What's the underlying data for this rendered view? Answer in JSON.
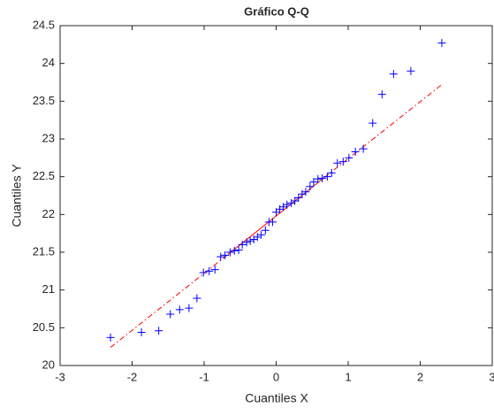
{
  "chart_data": {
    "type": "qq",
    "title": "Gráfico Q-Q",
    "x_label": "Cuantiles X",
    "y_label": "Cuantiles Y",
    "xlim": [
      -3,
      3
    ],
    "ylim": [
      20,
      24.5
    ],
    "xticks": [
      -3,
      -2,
      -1,
      0,
      1,
      2,
      3
    ],
    "yticks": [
      20,
      20.5,
      21,
      21.5,
      22,
      22.5,
      23,
      23.5,
      24,
      24.5
    ],
    "grid": false,
    "series": [
      {
        "color": "#0000ff",
        "x": [
          -2.3,
          -1.87,
          -1.63,
          -1.47,
          -1.34,
          -1.21,
          -1.1,
          -1.01,
          -0.93,
          -0.85,
          -0.77,
          -0.71,
          -0.64,
          -0.58,
          -0.52,
          -0.47,
          -0.41,
          -0.36,
          -0.31,
          -0.26,
          -0.21,
          -0.15,
          -0.1,
          -0.05,
          0,
          0.05,
          0.1,
          0.15,
          0.21,
          0.26,
          0.31,
          0.36,
          0.41,
          0.47,
          0.52,
          0.58,
          0.64,
          0.71,
          0.77,
          0.85,
          0.93,
          1.01,
          1.1,
          1.21,
          1.34,
          1.47,
          1.63,
          1.87,
          2.3
        ],
        "values": [
          20.37,
          20.44,
          20.46,
          20.68,
          20.74,
          20.76,
          20.89,
          21.23,
          21.25,
          21.27,
          21.44,
          21.46,
          21.5,
          21.52,
          21.53,
          21.6,
          21.63,
          21.65,
          21.67,
          21.7,
          21.73,
          21.79,
          21.9,
          21.9,
          22.03,
          22.07,
          22.1,
          22.13,
          22.15,
          22.18,
          22.22,
          22.27,
          22.3,
          22.37,
          22.43,
          22.47,
          22.48,
          22.5,
          22.55,
          22.68,
          22.7,
          22.75,
          22.83,
          22.87,
          23.21,
          23.59,
          23.86,
          23.9,
          24.27
        ]
      }
    ],
    "reference_line": {
      "color": "#ff0000",
      "x": [
        -2.3,
        -0.67,
        0.67,
        2.3
      ],
      "values": [
        20.24,
        21.47,
        22.49,
        23.72
      ]
    }
  }
}
